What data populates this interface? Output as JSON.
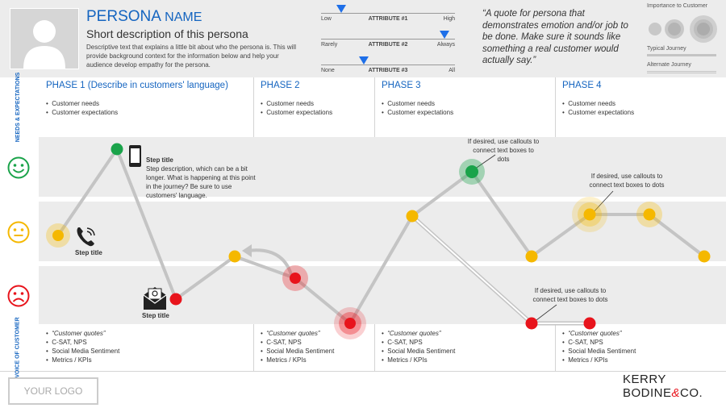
{
  "persona": {
    "title_main": "PERSONA",
    "title_name": "NAME",
    "short_description": "Short description of this persona",
    "description": "Descriptive text that explains a little bit about who the persona is. This will provide background context for the information below and help your audience develop empathy for the persona."
  },
  "attributes": [
    {
      "low": "Low",
      "name": "ATTRIBUTE #1",
      "high": "High",
      "level": 0.15
    },
    {
      "low": "Rarely",
      "name": "ATTRIBUTE #2",
      "high": "Always",
      "level": 0.92
    },
    {
      "low": "None",
      "name": "ATTRIBUTE #3",
      "high": "All",
      "level": 0.32
    }
  ],
  "quote": "“A quote for persona that demonstrates emotion and/or job to be done. Make sure it sounds like something a real customer would actually say.”",
  "legend": {
    "importance": "Importance to Customer",
    "typical": "Typical Journey",
    "alternate": "Alternate Journey"
  },
  "row_labels": {
    "needs": "NEEDS & EXPECTATIONS",
    "voice": "VOICE OF CUSTOMER"
  },
  "phases": [
    {
      "title": "PHASE 1 (Describe in customers' language)",
      "needs": [
        "Customer needs",
        "Customer expectations"
      ],
      "voice": [
        "“Customer quotes”",
        "C-SAT, NPS",
        "Social Media Sentiment",
        "Metrics / KPIs"
      ]
    },
    {
      "title": "PHASE 2",
      "needs": [
        "Customer needs",
        "Customer expectations"
      ],
      "voice": [
        "“Customer quotes”",
        "C-SAT, NPS",
        "Social Media Sentiment",
        "Metrics / KPIs"
      ]
    },
    {
      "title": "PHASE 3",
      "needs": [
        "Customer needs",
        "Customer expectations"
      ],
      "voice": [
        "“Customer quotes”",
        "C-SAT, NPS",
        "Social Media Sentiment",
        "Metrics / KPIs"
      ]
    },
    {
      "title": "PHASE 4",
      "needs": [
        "Customer needs",
        "Customer expectations"
      ],
      "voice": [
        "“Customer quotes”",
        "C-SAT, NPS",
        "Social Media Sentiment",
        "Metrics / KPIs"
      ]
    }
  ],
  "step": {
    "title": "Step title",
    "description": "Step description, which can be a bit longer. What is happening at this point in the journey? Be sure to use customers' language.",
    "phone_label": "Step title",
    "email_label": "Step title"
  },
  "callouts": [
    "If desired, use callouts to connect text boxes to dots",
    "If desired, use callouts to connect text boxes to dots",
    "If desired, use callouts to connect text boxes to dots"
  ],
  "footer": {
    "logo": "YOUR LOGO",
    "brand_line1": "KERRY",
    "brand_line2": "BODINE",
    "brand_amp": "&",
    "brand_co": "CO."
  },
  "colors": {
    "accent": "#1565c0",
    "positive": "#1aa34a",
    "neutral": "#f5b800",
    "negative": "#e8141c",
    "path": "#c4c4c4"
  }
}
